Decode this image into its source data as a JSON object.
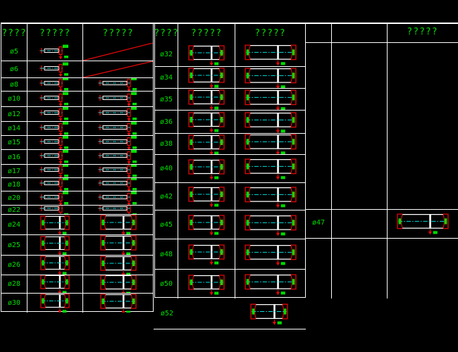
{
  "colors": {
    "accent_green": "#00dc00",
    "line_red": "#e00808",
    "centerline_cyan": "#00dcdc",
    "border_white": "#ffffff",
    "marker_olive": "#a0a000",
    "background": "#000000"
  },
  "left_table": {
    "headers": [
      "????",
      "?????",
      "?????"
    ],
    "rows": [
      {
        "label": "ø5",
        "spec_icon": "bolt-s",
        "detail_icon": "na"
      },
      {
        "label": "ø6",
        "spec_icon": "bolt-s",
        "detail_icon": "na"
      },
      {
        "label": "ø8",
        "spec_icon": "bolt-s",
        "detail_icon": "bolt-m"
      },
      {
        "label": "ø10",
        "spec_icon": "bolt-s",
        "detail_icon": "bolt-m"
      },
      {
        "label": "ø12",
        "spec_icon": "bolt-s",
        "detail_icon": "bolt-m"
      },
      {
        "label": "ø14",
        "spec_icon": "bolt-s",
        "detail_icon": "bolt-m"
      },
      {
        "label": "ø15",
        "spec_icon": "bolt-s",
        "detail_icon": "bolt-m"
      },
      {
        "label": "ø16",
        "spec_icon": "bolt-s",
        "detail_icon": "bolt-m"
      },
      {
        "label": "ø17",
        "spec_icon": "bolt-s",
        "detail_icon": "bolt-m"
      },
      {
        "label": "ø18",
        "spec_icon": "bolt-s",
        "detail_icon": "bolt-m"
      },
      {
        "label": "ø20",
        "spec_icon": "bolt-s",
        "detail_icon": "bolt-m"
      },
      {
        "label": "ø22",
        "spec_icon": "bolt-s",
        "detail_icon": "bolt-m"
      },
      {
        "label": "ø24",
        "spec_icon": "coupler-s",
        "detail_icon": "coupler-m"
      },
      {
        "label": "ø25",
        "spec_icon": "coupler-s",
        "detail_icon": "coupler-m"
      },
      {
        "label": "ø26",
        "spec_icon": "coupler-s",
        "detail_icon": "coupler-m"
      },
      {
        "label": "ø28",
        "spec_icon": "coupler-s",
        "detail_icon": "coupler-m"
      },
      {
        "label": "ø30",
        "spec_icon": "coupler-s",
        "detail_icon": "coupler-m"
      }
    ]
  },
  "right_table": {
    "headers": [
      "????",
      "?????",
      "?????"
    ],
    "rows": [
      {
        "label": "ø32",
        "spec_icon": "coupler-m",
        "detail_icon": "coupler-l"
      },
      {
        "label": "ø34",
        "spec_icon": "coupler-m",
        "detail_icon": "coupler-l"
      },
      {
        "label": "ø35",
        "spec_icon": "coupler-m",
        "detail_icon": "coupler-l"
      },
      {
        "label": "ø36",
        "spec_icon": "coupler-m",
        "detail_icon": "coupler-l"
      },
      {
        "label": "ø38",
        "spec_icon": "coupler-m",
        "detail_icon": "coupler-l"
      },
      {
        "label": "ø40",
        "spec_icon": "coupler-m",
        "detail_icon": "coupler-l"
      },
      {
        "label": "ø42",
        "spec_icon": "coupler-m",
        "detail_icon": "coupler-l"
      },
      {
        "label": "ø45",
        "spec_icon": "coupler-m",
        "detail_icon": "coupler-l"
      },
      {
        "label": "ø48",
        "spec_icon": "coupler-m",
        "detail_icon": "coupler-l"
      },
      {
        "label": "ø50",
        "spec_icon": "coupler-m",
        "detail_icon": "coupler-l"
      }
    ],
    "overflow_row": {
      "label": "ø52",
      "detail_icon": "coupler-m"
    }
  },
  "far_right_table": {
    "header": "?????",
    "row": {
      "label": "ø47",
      "detail_icon": "coupler-l"
    }
  }
}
